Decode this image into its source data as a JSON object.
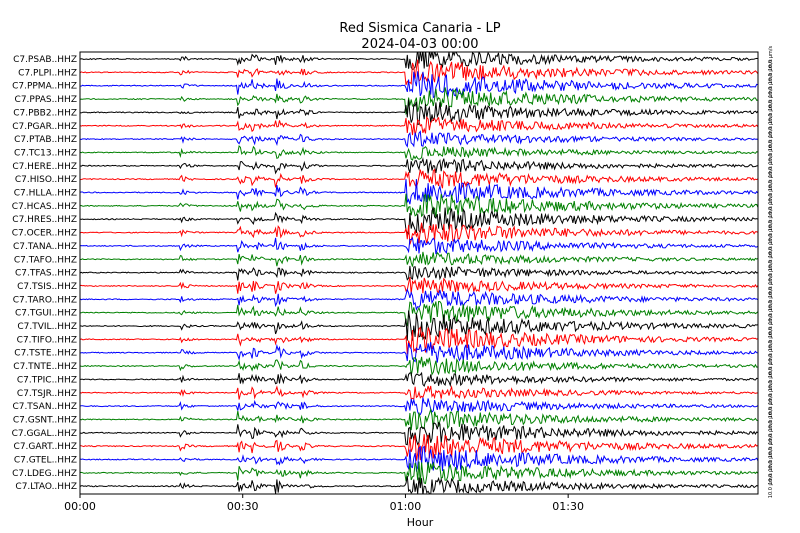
{
  "chart_data": {
    "type": "line",
    "title": "Red Sismica Canaria - LP",
    "subtitle": "2024-04-03 00:00",
    "xlabel": "Hour",
    "x_ticks": [
      "00:00",
      "00:30",
      "01:00",
      "01:30"
    ],
    "x_tick_minutes": [
      0,
      30,
      60,
      90
    ],
    "xlim_minutes": [
      0,
      125
    ],
    "scale_label": "10.0 µm/s",
    "colors": [
      "#000000",
      "#ff0000",
      "#0000ff",
      "#008000"
    ],
    "events": [
      {
        "minute": 18.5,
        "amp": 0.9,
        "decay": 1.2
      },
      {
        "minute": 29.0,
        "amp": 2.2,
        "decay": 1.0
      },
      {
        "minute": 31.5,
        "amp": 1.6,
        "decay": 1.5
      },
      {
        "minute": 36.0,
        "amp": 2.0,
        "decay": 1.4
      },
      {
        "minute": 40.5,
        "amp": 1.2,
        "decay": 1.5
      },
      {
        "minute": 60.0,
        "amp": 3.2,
        "decay": 25.0
      }
    ],
    "stations": [
      "C7.PSAB..HHZ",
      "C7.PLPI..HHZ",
      "C7.PPMA..HHZ",
      "C7.PPAS..HHZ",
      "C7.PBB2..HHZ",
      "C7.PGAR..HHZ",
      "C7.PTAB..HHZ",
      "C7.TC13..HHZ",
      "C7.HERE..HHZ",
      "C7.HISO..HHZ",
      "C7.HLLA..HHZ",
      "C7.HCAS..HHZ",
      "C7.HRES..HHZ",
      "C7.OCER..HHZ",
      "C7.TANA..HHZ",
      "C7.TAFO..HHZ",
      "C7.TFAS..HHZ",
      "C7.TSIS..HHZ",
      "C7.TARO..HHZ",
      "C7.TGUI..HHZ",
      "C7.TVIL..HHZ",
      "C7.TIFO..HHZ",
      "C7.TSTE..HHZ",
      "C7.TNTE..HHZ",
      "C7.TPIC..HHZ",
      "C7.TSJR..HHZ",
      "C7.TSAN..HHZ",
      "C7.GSNT..HHZ",
      "C7.GGAL..HHZ",
      "C7.GART..HHZ",
      "C7.GTEL..HHZ",
      "C7.LDEG..HHZ",
      "C7.LTAO..HHZ"
    ]
  }
}
